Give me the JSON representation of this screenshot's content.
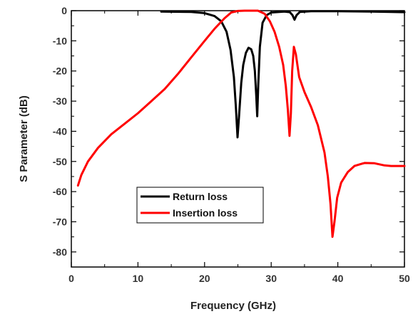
{
  "chart_data": {
    "type": "line",
    "xlabel": "Frequency (GHz)",
    "ylabel": "S Parameter (dB)",
    "xlim": [
      0,
      50
    ],
    "ylim": [
      -85,
      0
    ],
    "x_ticks": [
      0,
      10,
      20,
      30,
      40,
      50
    ],
    "x_tick_labels": [
      "0",
      "10",
      "20",
      "30",
      "40",
      "50"
    ],
    "y_ticks": [
      0,
      -10,
      -20,
      -30,
      -40,
      -50,
      -60,
      -70,
      -80
    ],
    "y_tick_labels": [
      "0",
      "-10",
      "-20",
      "-30",
      "-40",
      "-50",
      "-60",
      "-70",
      "-80"
    ],
    "grid": false,
    "legend_position": "bottom-left",
    "series": [
      {
        "name": "Return loss",
        "color": "#000000",
        "points": [
          [
            13.5,
            -0.3
          ],
          [
            18,
            -0.4
          ],
          [
            20,
            -0.8
          ],
          [
            21.5,
            -1.8
          ],
          [
            22.5,
            -3.5
          ],
          [
            23.3,
            -7
          ],
          [
            23.9,
            -13
          ],
          [
            24.4,
            -22
          ],
          [
            24.7,
            -32
          ],
          [
            24.95,
            -42
          ],
          [
            25.2,
            -34
          ],
          [
            25.5,
            -24
          ],
          [
            25.8,
            -18
          ],
          [
            26.2,
            -14
          ],
          [
            26.6,
            -12.3
          ],
          [
            27,
            -12.8
          ],
          [
            27.3,
            -15
          ],
          [
            27.55,
            -20
          ],
          [
            27.75,
            -28
          ],
          [
            27.9,
            -35
          ],
          [
            28.05,
            -25
          ],
          [
            28.3,
            -12
          ],
          [
            28.7,
            -4
          ],
          [
            29.3,
            -1.5
          ],
          [
            30,
            -0.6
          ],
          [
            32,
            -0.3
          ],
          [
            32.8,
            -0.5
          ],
          [
            33.2,
            -1.5
          ],
          [
            33.5,
            -3
          ],
          [
            33.8,
            -1.5
          ],
          [
            34.3,
            -0.4
          ],
          [
            36,
            -0.2
          ],
          [
            40,
            -0.2
          ],
          [
            45,
            -0.3
          ],
          [
            48,
            -0.4
          ],
          [
            50,
            -0.5
          ]
        ]
      },
      {
        "name": "Insertion loss",
        "color": "#ff0000",
        "points": [
          [
            1,
            -58
          ],
          [
            1.5,
            -54.5
          ],
          [
            2.5,
            -50
          ],
          [
            4,
            -45.5
          ],
          [
            6,
            -41
          ],
          [
            8,
            -37.5
          ],
          [
            10,
            -34
          ],
          [
            12,
            -30
          ],
          [
            14,
            -26
          ],
          [
            16,
            -21
          ],
          [
            18,
            -15.5
          ],
          [
            20,
            -10
          ],
          [
            21.5,
            -6
          ],
          [
            23,
            -2.5
          ],
          [
            24,
            -0.6
          ],
          [
            25,
            -0.1
          ],
          [
            26,
            0
          ],
          [
            28,
            0
          ],
          [
            29,
            -1
          ],
          [
            29.8,
            -3.5
          ],
          [
            30.5,
            -7
          ],
          [
            31.2,
            -12
          ],
          [
            31.8,
            -18
          ],
          [
            32.2,
            -25
          ],
          [
            32.5,
            -33
          ],
          [
            32.75,
            -41.5
          ],
          [
            32.95,
            -34
          ],
          [
            33.15,
            -20
          ],
          [
            33.4,
            -12
          ],
          [
            33.7,
            -14.5
          ],
          [
            34.2,
            -22
          ],
          [
            35,
            -27
          ],
          [
            36,
            -32
          ],
          [
            37,
            -38
          ],
          [
            38,
            -47
          ],
          [
            38.5,
            -55
          ],
          [
            38.9,
            -64
          ],
          [
            39.2,
            -75
          ],
          [
            39.5,
            -70
          ],
          [
            39.9,
            -62
          ],
          [
            40.5,
            -57
          ],
          [
            41.5,
            -53.5
          ],
          [
            42.5,
            -51.5
          ],
          [
            44,
            -50.5
          ],
          [
            45.5,
            -50.6
          ],
          [
            47,
            -51.3
          ],
          [
            48,
            -51.5
          ],
          [
            50,
            -51.5
          ]
        ]
      }
    ]
  }
}
